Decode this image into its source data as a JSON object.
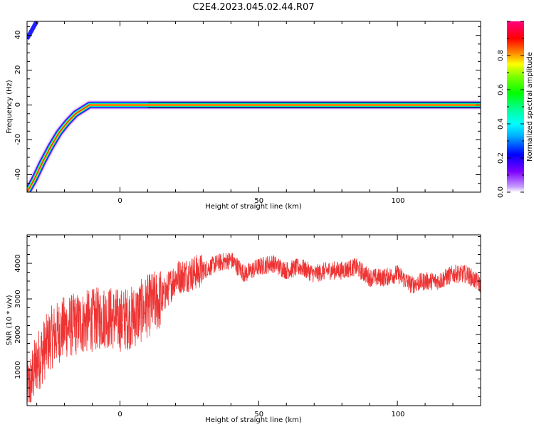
{
  "title": "C2E4.2023.045.02.44.R07",
  "chart_data": [
    {
      "type": "heatmap",
      "title": "",
      "xlabel": "Height of straight line (km)",
      "ylabel": "Frequency (Hz)",
      "xlim": [
        -33.5,
        130
      ],
      "ylim": [
        -50,
        48
      ],
      "xticks": [
        "0",
        "50",
        "100"
      ],
      "yticks": [
        "-40",
        "-20",
        "0",
        "20",
        "40"
      ],
      "grid": false,
      "colorbar": {
        "label": "Normalized spectral amplitude",
        "range": [
          0,
          1
        ],
        "ticks": [
          "0.0",
          "0.2",
          "0.4",
          "0.6",
          "0.8"
        ]
      },
      "ridge": {
        "x": [
          -33.5,
          -31,
          -28,
          -25,
          -22,
          -19,
          -16,
          -13,
          -11,
          -8,
          -5,
          0,
          5,
          10,
          130
        ],
        "y": [
          -50,
          -43,
          -33,
          -24,
          -16,
          -10,
          -5,
          -2,
          0,
          0,
          0,
          0,
          0,
          0,
          0
        ]
      }
    },
    {
      "type": "line",
      "title": "",
      "xlabel": "Height of straight line (km)",
      "ylabel": "SNR (10 * v/v)",
      "xlim": [
        -33.5,
        130
      ],
      "ylim": [
        0,
        4800
      ],
      "xticks": [
        "0",
        "50",
        "100"
      ],
      "yticks": [
        "1000",
        "2000",
        "3000",
        "4000"
      ],
      "grid": false,
      "series": [
        {
          "color": "#ee3333",
          "x": [
            -33.5,
            -30,
            -25,
            -20,
            -15,
            -10,
            -5,
            0,
            5,
            10,
            15,
            20,
            25,
            30,
            35,
            40,
            45,
            50,
            55,
            60,
            65,
            70,
            75,
            80,
            85,
            90,
            95,
            100,
            105,
            110,
            115,
            120,
            125,
            130
          ],
          "y": [
            300,
            1200,
            1900,
            2200,
            2300,
            2400,
            2500,
            2400,
            2500,
            2800,
            3000,
            3600,
            3700,
            3800,
            4000,
            4100,
            3700,
            3900,
            4000,
            3800,
            3900,
            3700,
            3800,
            3800,
            3900,
            3600,
            3600,
            3700,
            3400,
            3500,
            3500,
            3700,
            3700,
            3400
          ]
        }
      ]
    }
  ]
}
